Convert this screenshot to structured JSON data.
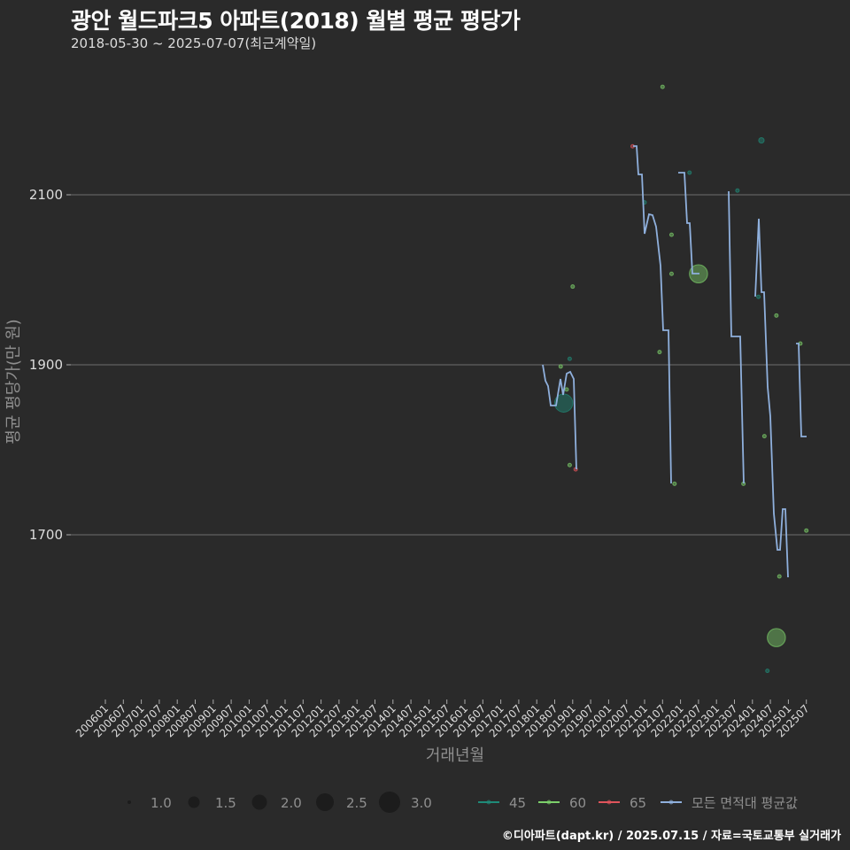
{
  "header": {
    "title": "광안 월드파크5 아파트(2018) 월별 평균 평당가",
    "subtitle": "2018-05-30 ~ 2025-07-07(최근계약일)"
  },
  "caption": "©디아파트(dapt.kr) / 2025.07.15 / 자료=국토교통부 실거래가",
  "colors": {
    "background": "#2a2a2a",
    "grid": "#6e6e6e",
    "s45": "#1f8a78",
    "s60": "#7ccf6a",
    "s65": "#e0545c",
    "avg": "#8fb0dd"
  },
  "chart_data": {
    "type": "scatter",
    "title": "광안 월드파크5 아파트(2018) 월별 평균 평당가",
    "subtitle": "2018-05-30 ~ 2025-07-07(최근계약일)",
    "xlabel": "거래년월",
    "ylabel": "평균 평당가(만 원)",
    "ylim": [
      1500,
      2230
    ],
    "yticks": [
      1700,
      1900,
      2100
    ],
    "grid": "horizontal",
    "legend_position": "bottom",
    "x_tick_labels": [
      "200601",
      "200607",
      "200701",
      "200707",
      "200801",
      "200807",
      "200901",
      "200907",
      "201001",
      "201007",
      "201101",
      "201107",
      "201201",
      "201207",
      "201301",
      "201307",
      "201401",
      "201407",
      "201501",
      "201507",
      "201601",
      "201607",
      "201701",
      "201707",
      "201801",
      "201807",
      "201901",
      "201907",
      "202001",
      "202007",
      "202101",
      "202107",
      "202201",
      "202207",
      "202301",
      "202307",
      "202401",
      "202407",
      "202501",
      "202507"
    ],
    "size_legend": {
      "title": "",
      "values": [
        1.0,
        1.5,
        2.0,
        2.5,
        3.0
      ]
    },
    "series": [
      {
        "name": "45",
        "color": "#1f8a78",
        "points": [
          {
            "x": "2018-10",
            "y": 1855,
            "size": 2.5
          },
          {
            "x": "2018-12",
            "y": 1907,
            "size": 1.0
          },
          {
            "x": "2021-01",
            "y": 2091,
            "size": 1.0
          },
          {
            "x": "2022-04",
            "y": 2126,
            "size": 1.0
          },
          {
            "x": "2023-08",
            "y": 2105,
            "size": 1.0
          },
          {
            "x": "2024-03",
            "y": 1980,
            "size": 1.0
          },
          {
            "x": "2024-04",
            "y": 2164,
            "size": 1.2
          },
          {
            "x": "2024-06",
            "y": 1540,
            "size": 1.0
          }
        ]
      },
      {
        "name": "60",
        "color": "#7ccf6a",
        "points": [
          {
            "x": "2018-09",
            "y": 1898,
            "size": 1.0
          },
          {
            "x": "2018-11",
            "y": 1871,
            "size": 1.0
          },
          {
            "x": "2018-12",
            "y": 1782,
            "size": 1.0
          },
          {
            "x": "2019-01",
            "y": 1992,
            "size": 1.0
          },
          {
            "x": "2021-06",
            "y": 1915,
            "size": 1.0
          },
          {
            "x": "2021-07",
            "y": 2227,
            "size": 1.0
          },
          {
            "x": "2021-10",
            "y": 2053,
            "size": 1.0
          },
          {
            "x": "2021-10",
            "y": 2007,
            "size": 1.0
          },
          {
            "x": "2021-11",
            "y": 1760,
            "size": 1.0
          },
          {
            "x": "2022-07",
            "y": 2007,
            "size": 2.5
          },
          {
            "x": "2023-10",
            "y": 1760,
            "size": 1.0
          },
          {
            "x": "2024-05",
            "y": 1816,
            "size": 1.0
          },
          {
            "x": "2024-09",
            "y": 1958,
            "size": 1.0
          },
          {
            "x": "2024-09",
            "y": 1579,
            "size": 2.5
          },
          {
            "x": "2024-10",
            "y": 1651,
            "size": 1.0
          },
          {
            "x": "2025-05",
            "y": 1925,
            "size": 1.0
          },
          {
            "x": "2025-07",
            "y": 1705,
            "size": 1.0
          }
        ]
      },
      {
        "name": "65",
        "color": "#e0545c",
        "points": [
          {
            "x": "2019-02",
            "y": 1777,
            "size": 1.0
          },
          {
            "x": "2020-09",
            "y": 2157,
            "size": 1.0
          }
        ]
      },
      {
        "name": "모든 면적대 평균값",
        "color": "#8fb0dd",
        "type": "line",
        "segments": [
          [
            [
              613,
              412
            ],
            [
              616,
              430
            ],
            [
              619,
              436
            ],
            [
              622,
              458
            ],
            [
              628,
              458
            ],
            [
              633,
              428
            ],
            [
              636,
              446
            ],
            [
              640,
              422
            ],
            [
              644,
              420
            ],
            [
              648,
              428
            ],
            [
              651,
              530
            ]
          ],
          [
            [
              715,
              165
            ],
            [
              719,
              165
            ],
            [
              721,
              197
            ],
            [
              725,
              197
            ],
            [
              728,
              264
            ],
            [
              733,
              242
            ],
            [
              737,
              243
            ],
            [
              741,
              256
            ],
            [
              746,
              300
            ],
            [
              749,
              373
            ],
            [
              755,
              373
            ],
            [
              758,
              546
            ]
          ],
          [
            [
              766,
              195
            ],
            [
              773,
              195
            ],
            [
              776,
              252
            ],
            [
              779,
              252
            ],
            [
              782,
              309
            ],
            [
              790,
              309
            ]
          ],
          [
            [
              823,
              216
            ],
            [
              826,
              380
            ],
            [
              836,
              380
            ],
            [
              840,
              546
            ]
          ],
          [
            [
              853,
              335
            ],
            [
              857,
              247
            ],
            [
              860,
              330
            ],
            [
              863,
              330
            ],
            [
              867,
              437
            ],
            [
              870,
              470
            ],
            [
              874,
              580
            ],
            [
              878,
              621
            ],
            [
              881,
              621
            ],
            [
              884,
              575
            ],
            [
              887,
              575
            ],
            [
              890,
              652
            ]
          ],
          [
            [
              899,
              388
            ],
            [
              902,
              388
            ],
            [
              905,
              493
            ],
            [
              911,
              493
            ]
          ]
        ]
      }
    ]
  },
  "legend": {
    "sizes": [
      {
        "label": "1.0"
      },
      {
        "label": "1.5"
      },
      {
        "label": "2.0"
      },
      {
        "label": "2.5"
      },
      {
        "label": "3.0"
      }
    ],
    "series": [
      {
        "label": "45"
      },
      {
        "label": "60"
      },
      {
        "label": "65"
      },
      {
        "label": "모든 면적대 평균값"
      }
    ]
  }
}
